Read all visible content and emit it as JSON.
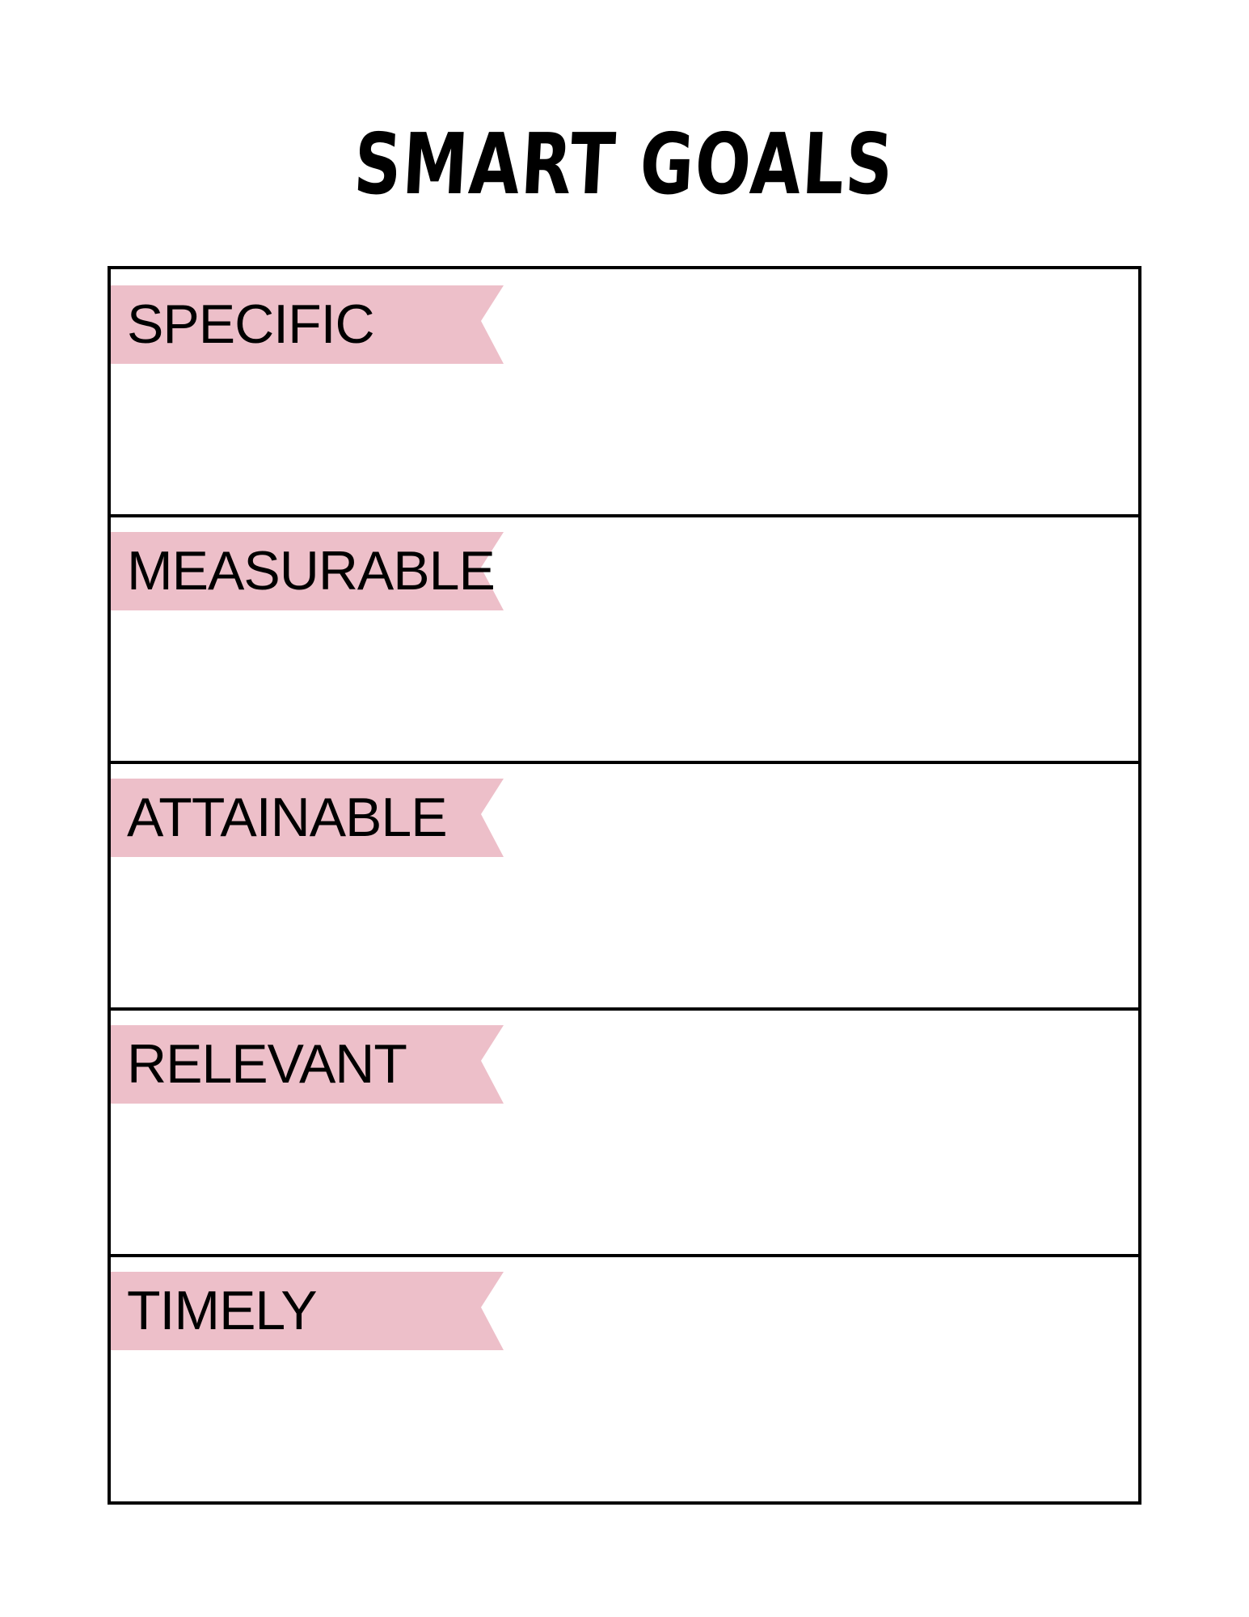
{
  "title": "SMART GOALS",
  "colors": {
    "banner": "#edbfc9",
    "border": "#000000"
  },
  "sections": [
    {
      "label": "SPECIFIC"
    },
    {
      "label": "MEASURABLE"
    },
    {
      "label": "ATTAINABLE"
    },
    {
      "label": "RELEVANT"
    },
    {
      "label": "TIMELY"
    }
  ]
}
